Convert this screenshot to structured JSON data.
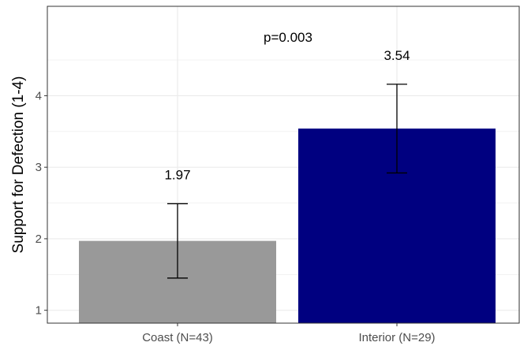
{
  "chart_data": {
    "type": "bar",
    "title": "",
    "xlabel": "",
    "ylabel": "Support for Defection (1-4)",
    "categories": [
      "Coast (N=43)",
      "Interior (N=29)"
    ],
    "values": [
      1.97,
      3.54
    ],
    "data_labels": [
      "1.97",
      "3.54"
    ],
    "error_bars": [
      {
        "low": 1.45,
        "high": 2.49
      },
      {
        "low": 2.92,
        "high": 4.16
      }
    ],
    "bar_colors": [
      "#999999",
      "#000080"
    ],
    "ylim": [
      0.82,
      5.25
    ],
    "y_ticks": [
      1,
      2,
      3,
      4
    ],
    "y_tick_labels": [
      "1",
      "2",
      "3",
      "4"
    ],
    "annotation": "p=0.003",
    "grid": true,
    "legend": "none"
  },
  "colors": {
    "panel_border": "#333333",
    "grid": "#ebebeb",
    "error_bar": "#000000"
  }
}
